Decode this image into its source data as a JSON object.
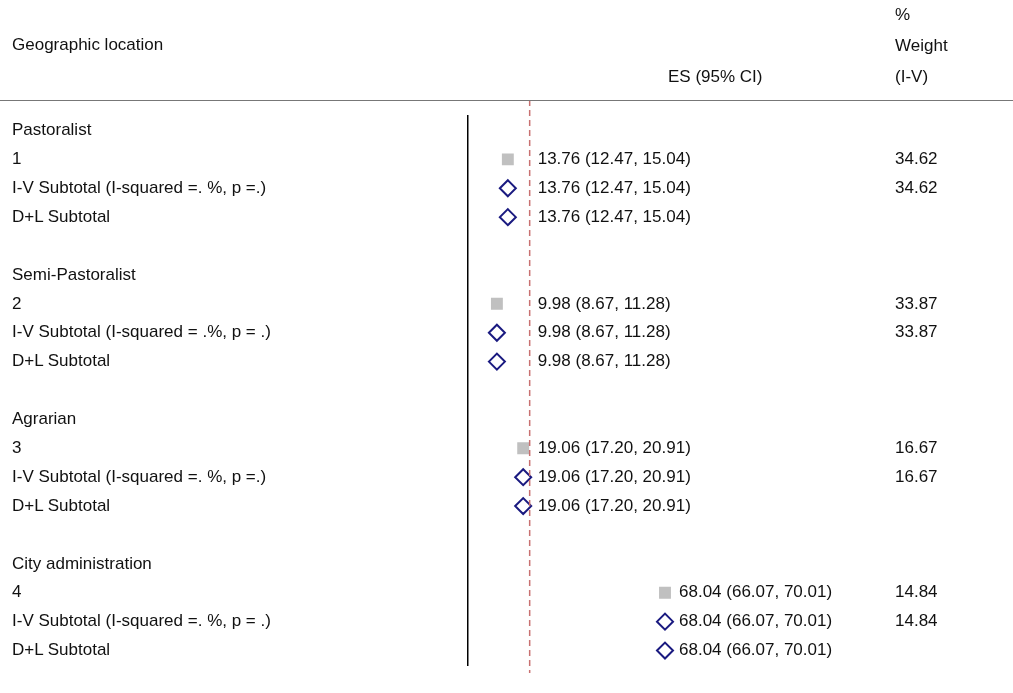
{
  "chart_data": {
    "type": "scatter",
    "orientation": "horizontal",
    "ylabel": "Geographic location",
    "categories": [
      "Pastoralist",
      "1",
      "I-V Subtotal (I-squared =. %, p =.)",
      "D+L Subtotal",
      null,
      "Semi-Pastoralist",
      "2",
      "I-V Subtotal (I-squared = .%, p = .)",
      "D+L Subtotal",
      null,
      "Agrarian",
      "3",
      "I-V Subtotal (I-squared =. %, p =.)",
      "D+L Subtotal",
      null,
      "City administration",
      "4",
      "I-V Subtotal (I-squared =. %, p = .)",
      "D+L Subtotal"
    ],
    "series": [
      {
        "marker": "square",
        "color": "#c0c0c0",
        "values": [
          null,
          13.76,
          null,
          null,
          null,
          null,
          9.98,
          null,
          null,
          null,
          null,
          19.06,
          null,
          null,
          null,
          null,
          68.04,
          null,
          null
        ],
        "value_labels": [
          null,
          "13.76 (12.47, 15.04)",
          null,
          null,
          null,
          null,
          "9.98 (8.67, 11.28)",
          null,
          null,
          null,
          null,
          "19.06 (17.20, 20.91)",
          null,
          null,
          null,
          null,
          "68.04 (66.07, 70.01)",
          null,
          null
        ]
      },
      {
        "marker": "diamond",
        "color": "#1a1a80",
        "values": [
          null,
          null,
          13.76,
          13.76,
          null,
          null,
          null,
          9.98,
          9.98,
          null,
          null,
          null,
          19.06,
          19.06,
          null,
          null,
          null,
          68.04,
          68.04
        ],
        "value_labels": [
          null,
          null,
          "13.76 (12.47, 15.04)",
          "13.76 (12.47, 15.04)",
          null,
          null,
          null,
          "9.98 (8.67, 11.28)",
          "9.98 (8.67, 11.28)",
          null,
          null,
          null,
          "19.06 (17.20, 20.91)",
          "19.06 (17.20, 20.91)",
          null,
          null,
          null,
          "68.04 (66.07, 70.01)",
          "68.04 (66.07, 70.01)"
        ]
      }
    ],
    "ref_lines": [
      {
        "axis": "x",
        "value": 21.3,
        "color": "#c87070",
        "line_style": "dashed"
      }
    ],
    "annotations": [
      "ES (95% CI)",
      "% Weight (I-V)",
      "34.62",
      "34.62",
      "33.87",
      "33.87",
      "16.67",
      "16.67",
      "14.84",
      "14.84"
    ],
    "tick_labels": "y",
    "grid": false,
    "legend": false
  }
}
